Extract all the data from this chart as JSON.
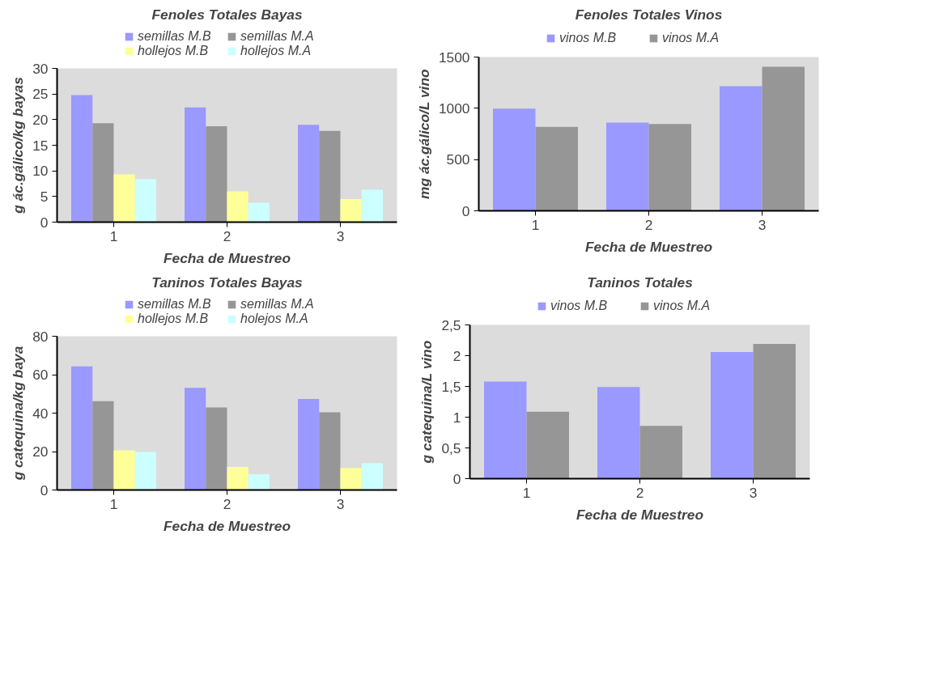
{
  "chart_data": [
    {
      "type": "bar",
      "title": "Fenoles Totales Bayas",
      "xlabel": "Fecha de Muestreo",
      "ylabel": "g ác.gálico/kg bayas",
      "categories": [
        "1",
        "2",
        "3"
      ],
      "ylim": [
        0,
        30
      ],
      "yticks": [
        0,
        5,
        10,
        15,
        20,
        25,
        30
      ],
      "grid": false,
      "legend": "top",
      "series": [
        {
          "name": "semillas M.B",
          "color": "#9999ff",
          "values": [
            24.8,
            22.4,
            19.0
          ]
        },
        {
          "name": "semillas M.A",
          "color": "#969696",
          "values": [
            19.3,
            18.7,
            17.8
          ]
        },
        {
          "name": "hollejos M.B",
          "color": "#ffff99",
          "values": [
            9.3,
            6.0,
            4.5
          ]
        },
        {
          "name": "hollejos M.A",
          "color": "#ccffff",
          "values": [
            8.4,
            3.8,
            6.3
          ]
        }
      ]
    },
    {
      "type": "bar",
      "title": "Fenoles Totales Vinos",
      "xlabel": "Fecha de Muestreo",
      "ylabel": "mg ác.gálico/L vino",
      "categories": [
        "1",
        "2",
        "3"
      ],
      "ylim": [
        0,
        1500
      ],
      "yticks": [
        0,
        500,
        1000,
        1500
      ],
      "grid": false,
      "legend": "top",
      "series": [
        {
          "name": "vinos M.B",
          "color": "#9999ff",
          "values": [
            997,
            861,
            1215
          ]
        },
        {
          "name": "vinos M.A",
          "color": "#969696",
          "values": [
            820,
            847,
            1405
          ]
        }
      ]
    },
    {
      "type": "bar",
      "title": "Taninos Totales Bayas",
      "xlabel": "Fecha de Muestreo",
      "ylabel": "g catequina/kg baya",
      "categories": [
        "1",
        "2",
        "3"
      ],
      "ylim": [
        0,
        80
      ],
      "yticks": [
        0,
        20,
        40,
        60,
        80
      ],
      "grid": false,
      "legend": "top",
      "series": [
        {
          "name": "semillas M.B",
          "color": "#9999ff",
          "values": [
            64.3,
            53.2,
            47.4
          ]
        },
        {
          "name": "semillas M.A",
          "color": "#969696",
          "values": [
            46.2,
            42.9,
            40.4
          ]
        },
        {
          "name": "hollejos M.B",
          "color": "#ffff99",
          "values": [
            20.6,
            12.0,
            11.5
          ]
        },
        {
          "name": "holejos M.A",
          "color": "#ccffff",
          "values": [
            19.8,
            8.2,
            14.0
          ]
        }
      ]
    },
    {
      "type": "bar",
      "title": "Taninos Totales",
      "xlabel": "Fecha de Muestreo",
      "ylabel": "g catequina/L vino",
      "categories": [
        "1",
        "2",
        "3"
      ],
      "ylim": [
        0,
        2.5
      ],
      "yticks": [
        0,
        {
          "value": 0.5,
          "label": "0,5"
        },
        1,
        {
          "value": 1.5,
          "label": "1,5"
        },
        2,
        {
          "value": 2.5,
          "label": "2,5"
        }
      ],
      "grid": false,
      "legend": "top",
      "series": [
        {
          "name": "vinos M.B",
          "color": "#9999ff",
          "values": [
            1.58,
            1.49,
            2.06
          ]
        },
        {
          "name": "vinos M.A",
          "color": "#969696",
          "values": [
            1.09,
            0.86,
            2.19
          ]
        }
      ]
    }
  ]
}
